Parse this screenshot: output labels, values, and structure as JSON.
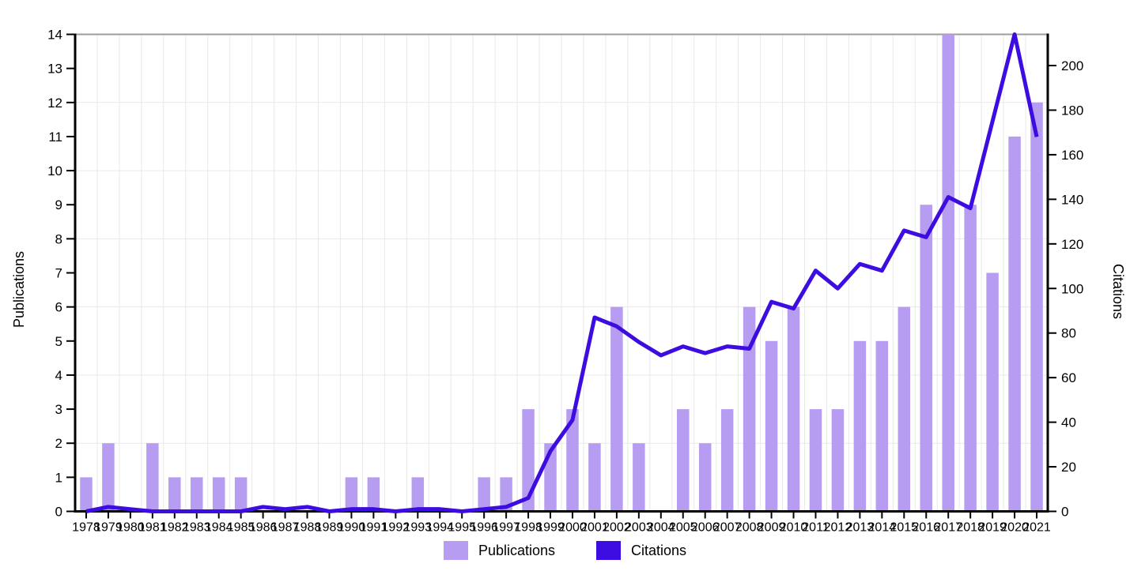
{
  "chart_data": {
    "type": "bar+line",
    "title": "",
    "categories": [
      1978,
      1979,
      1980,
      1981,
      1982,
      1983,
      1984,
      1985,
      1986,
      1987,
      1988,
      1989,
      1990,
      1991,
      1992,
      1993,
      1994,
      1995,
      1996,
      1997,
      1998,
      1999,
      2000,
      2001,
      2002,
      2003,
      2004,
      2005,
      2006,
      2007,
      2008,
      2009,
      2010,
      2011,
      2012,
      2013,
      2014,
      2015,
      2016,
      2017,
      2018,
      2019,
      2020,
      2021
    ],
    "series": [
      {
        "name": "Publications",
        "type": "bar",
        "axis": "left",
        "color": "#b69df1",
        "values": [
          1,
          2,
          0,
          2,
          1,
          1,
          1,
          1,
          0,
          0,
          0,
          0,
          1,
          1,
          0,
          1,
          0,
          0,
          1,
          1,
          3,
          2,
          3,
          2,
          6,
          2,
          0,
          3,
          2,
          3,
          6,
          5,
          6,
          3,
          3,
          5,
          5,
          6,
          9,
          14,
          9,
          7,
          11,
          12
        ]
      },
      {
        "name": "Citations",
        "type": "line",
        "axis": "right",
        "color": "#3c0ce0",
        "values": [
          0,
          2,
          1,
          0,
          0,
          0,
          0,
          0,
          2,
          1,
          2,
          0,
          1,
          1,
          0,
          1,
          1,
          0,
          1,
          2,
          6,
          27,
          41,
          87,
          83,
          76,
          70,
          74,
          71,
          74,
          73,
          94,
          91,
          108,
          100,
          111,
          108,
          126,
          123,
          141,
          136,
          175,
          214,
          168
        ]
      }
    ],
    "left_axis": {
      "label": "Publications",
      "min": 0,
      "max": 14,
      "ticks": [
        0,
        1,
        2,
        3,
        4,
        5,
        6,
        7,
        8,
        9,
        10,
        11,
        12,
        13,
        14
      ]
    },
    "right_axis": {
      "label": "Citations",
      "min": 0,
      "max": 214,
      "ticks": [
        0,
        20,
        40,
        60,
        80,
        100,
        120,
        140,
        160,
        180,
        200
      ]
    },
    "legend": {
      "position": "bottom",
      "entries": [
        "Publications",
        "Citations"
      ]
    },
    "grid": {
      "vertical": "year boundaries",
      "horizontal_at": [
        2,
        4,
        6,
        8,
        10,
        12
      ]
    },
    "colors": {
      "bar_fill": "#b69df1",
      "line_stroke": "#3c0ce0",
      "gridline": "#e9e9e9",
      "axis": "#000000",
      "top_frame": "#9c9c9c",
      "background": "#ffffff"
    }
  }
}
